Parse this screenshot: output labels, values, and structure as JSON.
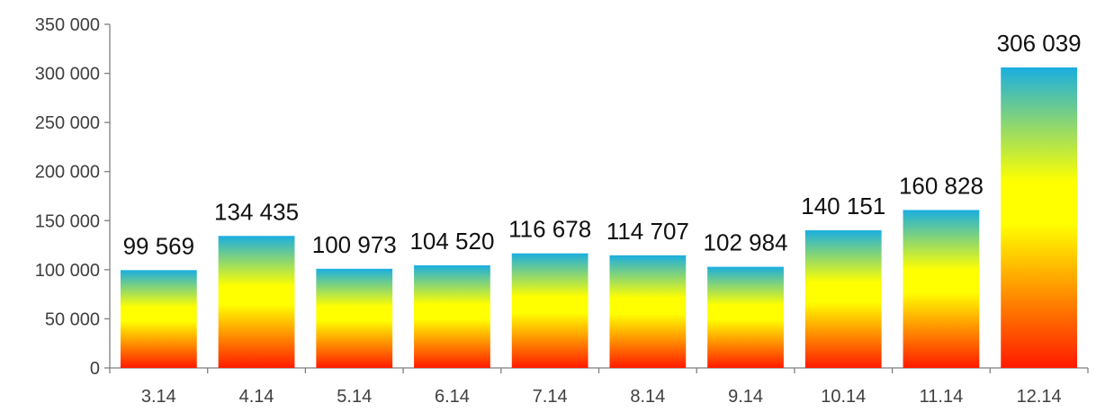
{
  "chart_data": {
    "type": "bar",
    "title": "",
    "xlabel": "",
    "ylabel": "",
    "categories": [
      "3.14",
      "4.14",
      "5.14",
      "6.14",
      "7.14",
      "8.14",
      "9.14",
      "10.14",
      "11.14",
      "12.14"
    ],
    "values": [
      99569,
      134435,
      100973,
      104520,
      116678,
      114707,
      102984,
      140151,
      160828,
      306039
    ],
    "data_labels": [
      "99 569",
      "134 435",
      "100 973",
      "104 520",
      "116 678",
      "114 707",
      "102 984",
      "140 151",
      "160 828",
      "306 039"
    ],
    "ylim": [
      0,
      350000
    ],
    "y_ticks": [
      0,
      50000,
      100000,
      150000,
      200000,
      250000,
      300000,
      350000
    ],
    "y_tick_labels": [
      "0",
      "50 000",
      "100 000",
      "150 000",
      "200 000",
      "250 000",
      "300 000",
      "350 000"
    ],
    "grid": false,
    "legend": "none",
    "bar_gradient": {
      "top": "#1aaee0",
      "middle": "#ffff00",
      "bottom": "#ff1a00"
    },
    "axis_color": "#7f7f7f"
  }
}
